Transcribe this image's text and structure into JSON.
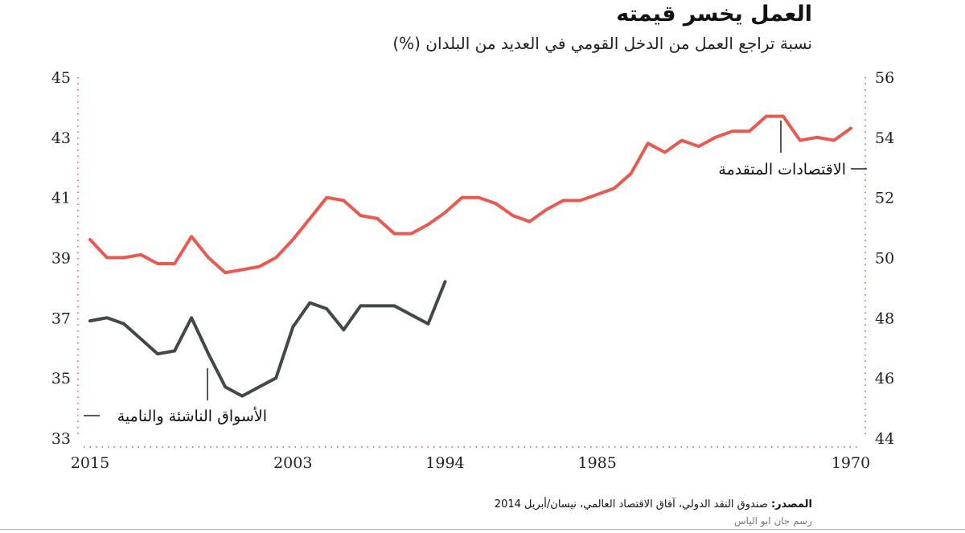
{
  "header": {
    "title": "العمل يخسر قيمته",
    "subtitle": "نسبة تراجع العمل من الدخل القومي في العديد من البلدان (%)"
  },
  "footer": {
    "source_label": "المصدر:",
    "source_text": "صندوق النقد الدولي، آفاق الاقتصاد العالمي، نيسان/أبريل 2014",
    "credit": "رسم جان ابو الياس"
  },
  "colors": {
    "advanced": "#e8473c",
    "emerging": "#2b3532",
    "axis_dots": "#e8473c"
  },
  "chart_data": {
    "type": "line",
    "x_direction": "reversed (2015 at left, 1970 at right)",
    "x_ticks": [
      2015,
      2003,
      1994,
      1985,
      1970
    ],
    "xlim": [
      2015,
      1970
    ],
    "left_axis": {
      "ylim": [
        33,
        45
      ],
      "ticks": [
        33,
        35,
        37,
        39,
        41,
        43,
        45
      ]
    },
    "right_axis": {
      "ylim": [
        44,
        56
      ],
      "ticks": [
        44,
        46,
        48,
        50,
        52,
        54,
        56
      ]
    },
    "series": [
      {
        "name": "الاقتصادات المتقدمة",
        "axis": "right",
        "x": [
          2015,
          2014,
          2013,
          2012,
          2011,
          2010,
          2009,
          2008,
          2007,
          2006,
          2005,
          2004,
          2003,
          2002,
          2001,
          2000,
          1999,
          1998,
          1997,
          1996,
          1995,
          1994,
          1993,
          1992,
          1991,
          1990,
          1989,
          1988,
          1987,
          1986,
          1985,
          1984,
          1983,
          1982,
          1981,
          1980,
          1979,
          1978,
          1977,
          1976,
          1975,
          1974,
          1973,
          1972,
          1971,
          1970
        ],
        "values": [
          50.6,
          50.0,
          50.0,
          50.1,
          49.8,
          49.8,
          50.7,
          50.0,
          49.5,
          49.6,
          49.7,
          50.0,
          50.6,
          51.3,
          52.0,
          51.9,
          51.4,
          51.3,
          50.8,
          50.8,
          51.1,
          51.5,
          52.0,
          52.0,
          51.8,
          51.4,
          51.2,
          51.6,
          51.9,
          51.9,
          52.1,
          52.3,
          52.8,
          53.8,
          53.5,
          53.9,
          53.7,
          54.0,
          54.2,
          54.2,
          54.7,
          54.7,
          53.9,
          54.0,
          53.9,
          54.3
        ]
      },
      {
        "name": "الأسواق الناشئة والنامية",
        "axis": "left",
        "x": [
          2015,
          2014,
          2013,
          2012,
          2011,
          2010,
          2009,
          2008,
          2007,
          2006,
          2005,
          2004,
          2003,
          2002,
          2001,
          2000,
          1999,
          1998,
          1997,
          1996,
          1995,
          1994
        ],
        "values": [
          36.9,
          37.0,
          36.8,
          36.3,
          35.8,
          35.9,
          37.0,
          35.8,
          34.7,
          34.4,
          34.7,
          35.0,
          36.7,
          37.5,
          37.3,
          36.6,
          37.4,
          37.4,
          37.4,
          37.1,
          36.8,
          38.2
        ]
      }
    ]
  }
}
